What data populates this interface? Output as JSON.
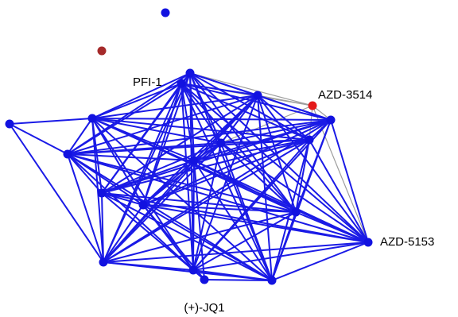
{
  "colors": {
    "node_default": "#1212e0",
    "node_highlight": "#e41a1a",
    "node_isolated_dark": "#a52a2a",
    "edge_primary": "#1a1ae6",
    "edge_secondary": "#9e9e9e"
  },
  "graph": {
    "nodes": [
      {
        "id": "AZD-3514",
        "label": "AZD-3514",
        "color": "highlight"
      },
      {
        "id": "AZD-5153",
        "label": "AZD-5153",
        "color": "default"
      },
      {
        "id": "PFI-1",
        "label": "PFI-1",
        "color": "default"
      },
      {
        "id": "(+)-JQ1",
        "label": "(+)-JQ1",
        "color": "default"
      },
      {
        "id": "n_top",
        "label": "",
        "color": "default"
      },
      {
        "id": "n_isolated",
        "label": "",
        "color": "isolated_dark"
      },
      {
        "id": "n_far_left",
        "label": "",
        "color": "default"
      },
      {
        "id": "n_upper_left",
        "label": "",
        "color": "default"
      },
      {
        "id": "n_upper_right",
        "label": "",
        "color": "default"
      },
      {
        "id": "n_right",
        "label": "",
        "color": "default"
      },
      {
        "id": "n_left",
        "label": "",
        "color": "default"
      },
      {
        "id": "n_center",
        "label": "",
        "color": "default"
      },
      {
        "id": "n_mid_right",
        "label": "",
        "color": "default"
      },
      {
        "id": "n_low_left",
        "label": "",
        "color": "default"
      },
      {
        "id": "n_mid",
        "label": "",
        "color": "default"
      },
      {
        "id": "n_low_right",
        "label": "",
        "color": "default"
      },
      {
        "id": "n_bottom_left",
        "label": "",
        "color": "default"
      },
      {
        "id": "n_bottom_center",
        "label": "",
        "color": "default"
      },
      {
        "id": "n_bottom_right",
        "label": "",
        "color": "default"
      },
      {
        "id": "n_pfi_b",
        "label": "",
        "color": "default"
      },
      {
        "id": "n_extra",
        "label": "",
        "color": "default"
      }
    ]
  }
}
